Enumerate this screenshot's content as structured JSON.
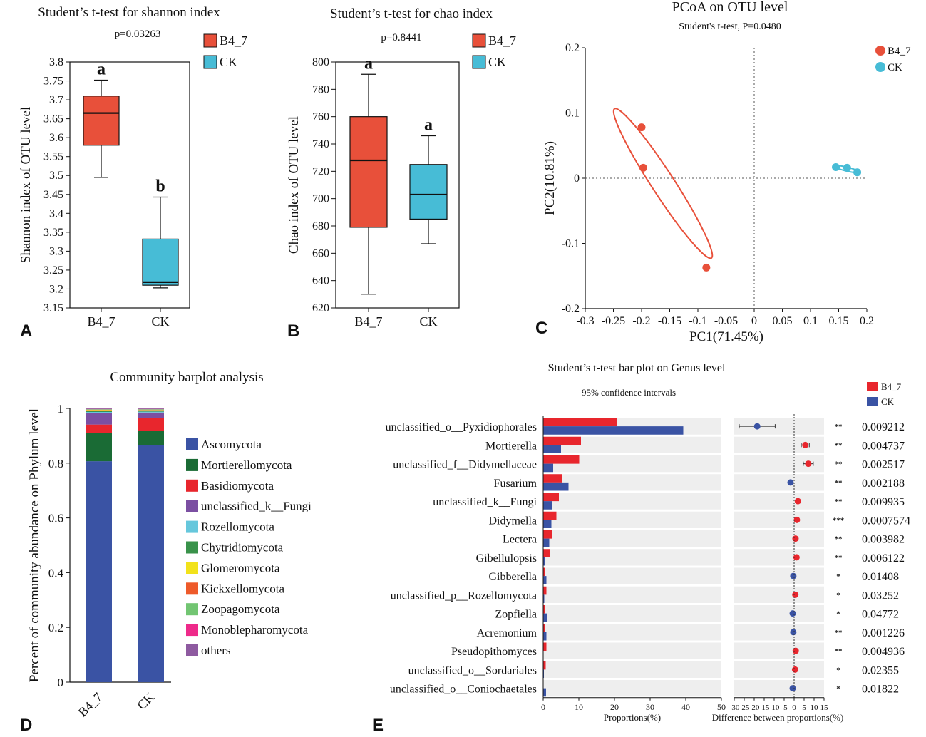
{
  "colors": {
    "b47": "#e8503a",
    "ck": "#47bcd6",
    "b47_bar": "#e8262d",
    "ck_bar": "#3a53a4",
    "stripe": "#eeeeee"
  },
  "panel_letters": [
    "A",
    "B",
    "C",
    "D",
    "E"
  ],
  "chart_data": [
    {
      "id": "A",
      "type": "box",
      "title": "Student’s t-test for shannon index",
      "pvalue": "p=0.03263",
      "ylabel": "Shannon index of OTU level",
      "ylim": [
        3.15,
        3.8
      ],
      "yticks": [
        "3.15",
        "3.2",
        "3.25",
        "3.3",
        "3.35",
        "3.4",
        "3.45",
        "3.5",
        "3.55",
        "3.6",
        "3.65",
        "3.7",
        "3.75",
        "3.8"
      ],
      "categories": [
        "B4_7",
        "CK"
      ],
      "legend": [
        "B4_7",
        "CK"
      ],
      "boxes": [
        {
          "name": "B4_7",
          "min": 3.495,
          "q1": 3.58,
          "median": 3.665,
          "q3": 3.71,
          "max": 3.752,
          "letter": "a"
        },
        {
          "name": "CK",
          "min": 3.203,
          "q1": 3.21,
          "median": 3.218,
          "q3": 3.332,
          "max": 3.443,
          "letter": "b"
        }
      ]
    },
    {
      "id": "B",
      "type": "box",
      "title": "Student’s t-test for chao index",
      "pvalue": "p=0.8441",
      "ylabel": "Chao index of OTU level",
      "ylim": [
        620,
        800
      ],
      "yticks": [
        "620",
        "640",
        "660",
        "680",
        "700",
        "720",
        "740",
        "760",
        "780",
        "800"
      ],
      "categories": [
        "B4_7",
        "CK"
      ],
      "legend": [
        "B4_7",
        "CK"
      ],
      "boxes": [
        {
          "name": "B4_7",
          "min": 630,
          "q1": 679,
          "median": 728,
          "q3": 760,
          "max": 791,
          "letter": "a"
        },
        {
          "name": "CK",
          "min": 667,
          "q1": 685,
          "median": 703,
          "q3": 725,
          "max": 746,
          "letter": "a"
        }
      ]
    },
    {
      "id": "C",
      "type": "scatter",
      "title": "PCoA on OTU level",
      "subtitle": "Student's t-test, P=0.0480",
      "xlabel": "PC1(71.45%)",
      "ylabel": "PC2(10.81%)",
      "xlim": [
        -0.3,
        0.2
      ],
      "ylim": [
        -0.2,
        0.2
      ],
      "xticks": [
        "-0.3",
        "-0.25",
        "-0.2",
        "-0.15",
        "-0.1",
        "-0.05",
        "0",
        "0.05",
        "0.1",
        "0.15",
        "0.2"
      ],
      "yticks": [
        "-0.2",
        "-0.1",
        "0",
        "0.1",
        "0.2"
      ],
      "legend": [
        "B4_7",
        "CK"
      ],
      "series": [
        {
          "name": "B4_7",
          "points": [
            [
              -0.2,
              0.078
            ],
            [
              -0.197,
              0.016
            ],
            [
              -0.085,
              -0.137
            ]
          ],
          "ellipse": {
            "cx": -0.162,
            "cy": -0.008,
            "rx": 0.158,
            "ry": 0.02,
            "angle_deg": 57
          }
        },
        {
          "name": "CK",
          "points": [
            [
              0.145,
              0.017
            ],
            [
              0.165,
              0.016
            ],
            [
              0.183,
              0.009
            ]
          ],
          "ellipse": {
            "cx": 0.164,
            "cy": 0.014,
            "rx": 0.022,
            "ry": 0.0035,
            "angle_deg": 14
          }
        }
      ]
    },
    {
      "id": "D",
      "type": "stacked-bar",
      "title": "Community barplot analysis",
      "ylabel": "Percent of community abundance on Phylum level",
      "ylim": [
        0,
        1
      ],
      "yticks": [
        "0",
        "0.2",
        "0.4",
        "0.6",
        "0.8",
        "1"
      ],
      "categories": [
        "B4_7",
        "CK"
      ],
      "series": [
        {
          "name": "Ascomycota",
          "color": "#3a53a4",
          "values": [
            0.807,
            0.865
          ]
        },
        {
          "name": "Mortierellomycota",
          "color": "#1a6b35",
          "values": [
            0.104,
            0.052
          ]
        },
        {
          "name": "Basidiomycota",
          "color": "#e8262d",
          "values": [
            0.03,
            0.048
          ]
        },
        {
          "name": "unclassified_k__Fungi",
          "color": "#7b4fa2",
          "values": [
            0.042,
            0.02
          ]
        },
        {
          "name": "Rozellomycota",
          "color": "#66c7dc",
          "values": [
            0.004,
            0.003
          ]
        },
        {
          "name": "Chytridiomycota",
          "color": "#39924a",
          "values": [
            0.004,
            0.005
          ]
        },
        {
          "name": "Glomeromycota",
          "color": "#f2e21b",
          "values": [
            0.003,
            0.001
          ]
        },
        {
          "name": "Kickxellomycota",
          "color": "#ee5a2a",
          "values": [
            0.001,
            0.001
          ]
        },
        {
          "name": "Zoopagomycota",
          "color": "#72c572",
          "values": [
            0.002,
            0.002
          ]
        },
        {
          "name": "Monoblepharomycota",
          "color": "#ee2a8a",
          "values": [
            0.001,
            0.001
          ]
        },
        {
          "name": "others",
          "color": "#8e5aa0",
          "values": [
            0.002,
            0.002
          ]
        }
      ]
    },
    {
      "id": "E",
      "type": "bar",
      "title": "Student’s t-test bar plot on Genus level",
      "subtitle": "95% confidence intervals",
      "xlabel": "Proportions(%)",
      "xlabel2": "Difference between proportions(%)",
      "xlim": [
        0,
        50
      ],
      "xticks": [
        "0",
        "10",
        "20",
        "30",
        "40",
        "50"
      ],
      "xlim2": [
        -30,
        15
      ],
      "xticks2": [
        "-30",
        "-25",
        "-20",
        "-15",
        "-10",
        "-5",
        "0",
        "5",
        "10",
        "15"
      ],
      "legend": [
        "B4_7",
        "CK"
      ],
      "genera": [
        {
          "name": "unclassified_o__Pyxidiophorales",
          "b47": 20.8,
          "ck": 39.3,
          "diff": -18.5,
          "lo": -27.5,
          "hi": -9.5,
          "sig": "**",
          "p": "0.009212"
        },
        {
          "name": "Mortierella",
          "b47": 10.6,
          "ck": 5.0,
          "diff": 5.6,
          "lo": 3.6,
          "hi": 7.6,
          "sig": "**",
          "p": "0.004737"
        },
        {
          "name": "unclassified_f__Didymellaceae",
          "b47": 10.1,
          "ck": 2.8,
          "diff": 7.1,
          "lo": 4.6,
          "hi": 9.6,
          "sig": "**",
          "p": "0.002517"
        },
        {
          "name": "Fusarium",
          "b47": 5.3,
          "ck": 7.1,
          "diff": -1.8,
          "lo": -2.4,
          "hi": -1.2,
          "sig": "**",
          "p": "0.002188"
        },
        {
          "name": "unclassified_k__Fungi",
          "b47": 4.4,
          "ck": 2.5,
          "diff": 1.9,
          "lo": 1.2,
          "hi": 2.6,
          "sig": "**",
          "p": "0.009935"
        },
        {
          "name": "Didymella",
          "b47": 3.7,
          "ck": 2.3,
          "diff": 1.4,
          "lo": 1.1,
          "hi": 1.7,
          "sig": "***",
          "p": "0.0007574"
        },
        {
          "name": "Lectera",
          "b47": 2.4,
          "ck": 1.7,
          "diff": 0.7,
          "lo": 0.4,
          "hi": 1.0,
          "sig": "**",
          "p": "0.003982"
        },
        {
          "name": "Gibellulopsis",
          "b47": 1.8,
          "ck": 0.6,
          "diff": 1.2,
          "lo": 0.6,
          "hi": 1.8,
          "sig": "**",
          "p": "0.006122"
        },
        {
          "name": "Gibberella",
          "b47": 0.5,
          "ck": 0.9,
          "diff": -0.4,
          "lo": -0.7,
          "hi": -0.1,
          "sig": "*",
          "p": "0.01408"
        },
        {
          "name": "unclassified_p__Rozellomycota",
          "b47": 0.9,
          "ck": 0.3,
          "diff": 0.6,
          "lo": 0.1,
          "hi": 1.1,
          "sig": "*",
          "p": "0.03252"
        },
        {
          "name": "Zopfiella",
          "b47": 0.4,
          "ck": 1.1,
          "diff": -0.7,
          "lo": -1.3,
          "hi": -0.1,
          "sig": "*",
          "p": "0.04772"
        },
        {
          "name": "Acremonium",
          "b47": 0.5,
          "ck": 0.9,
          "diff": -0.4,
          "lo": -0.6,
          "hi": -0.2,
          "sig": "**",
          "p": "0.001226"
        },
        {
          "name": "Pseudopithomyces",
          "b47": 0.9,
          "ck": 0.1,
          "diff": 0.8,
          "lo": 0.3,
          "hi": 1.3,
          "sig": "**",
          "p": "0.004936"
        },
        {
          "name": "unclassified_o__Sordariales",
          "b47": 0.7,
          "ck": 0.2,
          "diff": 0.5,
          "lo": 0.1,
          "hi": 0.9,
          "sig": "*",
          "p": "0.02355"
        },
        {
          "name": "unclassified_o__Coniochaetales",
          "b47": 0.1,
          "ck": 0.8,
          "diff": -0.7,
          "lo": -1.3,
          "hi": -0.1,
          "sig": "*",
          "p": "0.01822"
        }
      ]
    }
  ]
}
